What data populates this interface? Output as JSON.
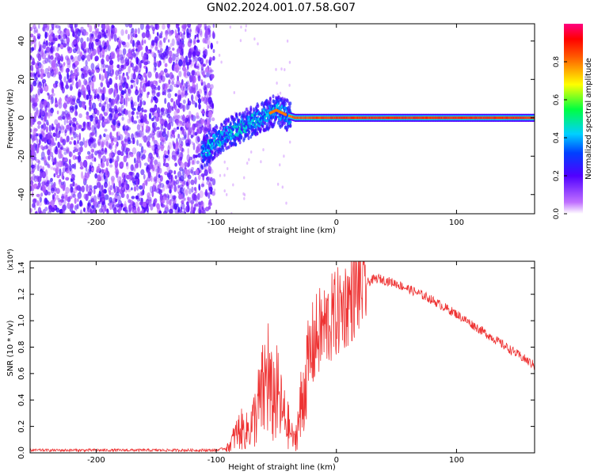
{
  "title": "GN02.2024.001.07.58.G07",
  "chart_data": [
    {
      "type": "heatmap",
      "xlabel": "Height of straight line (km)",
      "ylabel": "Frequency (Hz)",
      "xlim": [
        -255,
        165
      ],
      "ylim": [
        -50,
        49
      ],
      "x_ticks": [
        -200,
        -100,
        0,
        100
      ],
      "y_ticks": [
        -40,
        -20,
        0,
        20,
        40
      ],
      "colorbar": {
        "label": "Normalized spectral amplitude",
        "range": [
          0.0,
          1.0
        ],
        "ticks": [
          0.0,
          0.2,
          0.4,
          0.6,
          0.8
        ],
        "colors": [
          "#ffffff",
          "#b040ff",
          "#4000ff",
          "#00c0ff",
          "#00ff80",
          "#ffff00",
          "#ff8000",
          "#ff0000",
          "#ff0080"
        ]
      },
      "signal_track": [
        {
          "x": -110,
          "freq": -18,
          "amplitude": 0.4
        },
        {
          "x": -100,
          "freq": -12,
          "amplitude": 0.45
        },
        {
          "x": -90,
          "freq": -8,
          "amplitude": 0.45
        },
        {
          "x": -80,
          "freq": -5,
          "amplitude": 0.45
        },
        {
          "x": -70,
          "freq": -2,
          "amplitude": 0.45
        },
        {
          "x": -60,
          "freq": 1,
          "amplitude": 0.45
        },
        {
          "x": -50,
          "freq": 4,
          "amplitude": 0.85
        },
        {
          "x": -40,
          "freq": 1,
          "amplitude": 0.8
        },
        {
          "x": -35,
          "freq": 0,
          "amplitude": 0.85
        },
        {
          "x": 0,
          "freq": 0,
          "amplitude": 0.9
        },
        {
          "x": 100,
          "freq": 0,
          "amplitude": 0.9
        },
        {
          "x": 165,
          "freq": 0,
          "amplitude": 0.9
        }
      ],
      "noise_region_x": [
        -255,
        -108
      ]
    },
    {
      "type": "line",
      "xlabel": "Height of straight line (km)",
      "ylabel": "SNR (10 * v/v)",
      "y_multiplier": "(x10⁴)",
      "xlim": [
        -255,
        165
      ],
      "ylim": [
        0,
        1.45
      ],
      "x_ticks": [
        -200,
        -100,
        0,
        100
      ],
      "y_ticks": [
        0.0,
        0.2,
        0.4,
        0.6,
        0.8,
        1.0,
        1.2,
        1.4
      ],
      "series": [
        {
          "color": "#ee3333",
          "points": [
            [
              -255,
              0.02
            ],
            [
              -200,
              0.02
            ],
            [
              -150,
              0.02
            ],
            [
              -100,
              0.02
            ],
            [
              -90,
              0.04
            ],
            [
              -85,
              0.12
            ],
            [
              -80,
              0.18
            ],
            [
              -75,
              0.16
            ],
            [
              -70,
              0.22
            ],
            [
              -65,
              0.35
            ],
            [
              -60,
              0.48
            ],
            [
              -57,
              0.62
            ],
            [
              -55,
              0.4
            ],
            [
              -50,
              0.45
            ],
            [
              -45,
              0.3
            ],
            [
              -40,
              0.2
            ],
            [
              -35,
              0.08
            ],
            [
              -30,
              0.3
            ],
            [
              -25,
              0.6
            ],
            [
              -20,
              0.8
            ],
            [
              -15,
              0.9
            ],
            [
              -10,
              0.95
            ],
            [
              -5,
              1.0
            ],
            [
              0,
              1.05
            ],
            [
              5,
              1.1
            ],
            [
              10,
              1.15
            ],
            [
              20,
              1.25
            ],
            [
              30,
              1.31
            ],
            [
              35,
              1.32
            ],
            [
              50,
              1.28
            ],
            [
              75,
              1.18
            ],
            [
              100,
              1.05
            ],
            [
              125,
              0.9
            ],
            [
              150,
              0.75
            ],
            [
              165,
              0.66
            ]
          ]
        }
      ]
    }
  ]
}
